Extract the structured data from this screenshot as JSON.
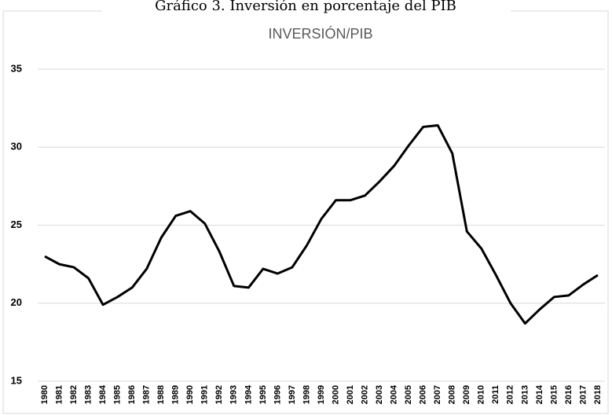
{
  "chart_data": {
    "type": "line",
    "figure_title": "Gráfico 3. Inversión en porcentaje del PIB",
    "title": "INVERSIÓN/PIB",
    "categories": [
      "1980",
      "1981",
      "1982",
      "1983",
      "1984",
      "1985",
      "1986",
      "1987",
      "1988",
      "1989",
      "1990",
      "1991",
      "1992",
      "1993",
      "1994",
      "1995",
      "1996",
      "1997",
      "1998",
      "1999",
      "2000",
      "2001",
      "2002",
      "2003",
      "2004",
      "2005",
      "2006",
      "2007",
      "2008",
      "2009",
      "2010",
      "2011",
      "2012",
      "2013",
      "2014",
      "2015",
      "2016",
      "2017",
      "2018"
    ],
    "values": [
      23.0,
      22.5,
      22.3,
      21.6,
      19.9,
      20.4,
      21.0,
      22.2,
      24.2,
      25.6,
      25.9,
      25.1,
      23.3,
      21.1,
      21.0,
      22.2,
      21.9,
      22.3,
      23.7,
      25.4,
      26.6,
      26.6,
      26.9,
      27.8,
      28.8,
      30.1,
      31.3,
      31.4,
      29.6,
      24.6,
      23.5,
      21.8,
      20.0,
      18.7,
      19.6,
      20.4,
      20.5,
      21.2,
      21.8
    ],
    "color": "#000000",
    "ylim": [
      15,
      35
    ],
    "yticks": [
      15,
      20,
      25,
      30,
      35
    ],
    "grid": true
  }
}
